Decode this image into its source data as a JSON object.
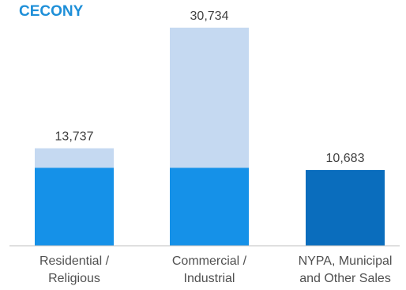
{
  "chart_data": {
    "type": "bar",
    "title": "CECONY",
    "title_color": "#1e8fd8",
    "stacked": true,
    "categories": [
      [
        "Residential /",
        "Religious"
      ],
      [
        "Commercial /",
        "Industrial"
      ],
      [
        "NYPA, Municipal",
        "and Other Sales"
      ]
    ],
    "totals": [
      13737,
      30734,
      10683
    ],
    "total_labels": [
      "13,737",
      "30,734",
      "10,683"
    ],
    "series": [
      {
        "values": [
          11000,
          11000,
          10683
        ],
        "colors": [
          "#1591e8",
          "#1591e8",
          "#0a6dbd"
        ]
      },
      {
        "values": [
          2737,
          19734,
          0
        ],
        "colors": [
          "#c5d9f1",
          "#c5d9f1",
          "#c5d9f1"
        ]
      }
    ],
    "ylim": [
      0,
      32000
    ],
    "grid": false,
    "legend": "none"
  }
}
